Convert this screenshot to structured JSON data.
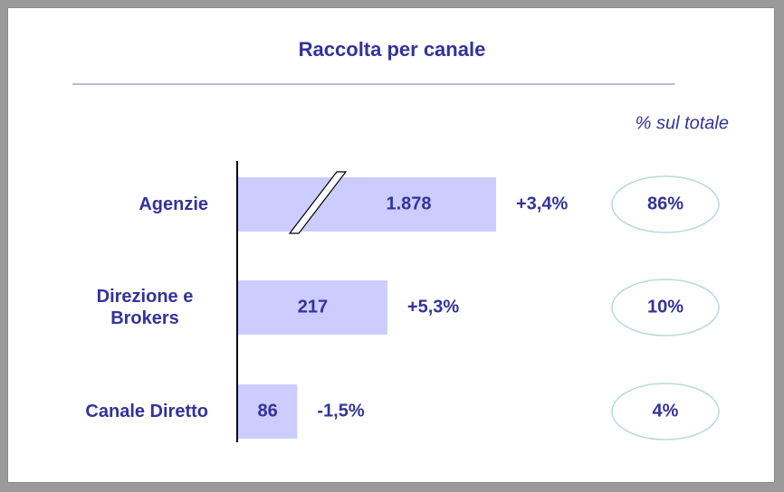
{
  "chart_data": {
    "type": "bar",
    "orientation": "horizontal",
    "title": "Raccolta per canale",
    "subtitle": "% sul totale",
    "categories": [
      "Agenzie",
      "Direzione e Brokers",
      "Canale Diretto"
    ],
    "values": [
      1878,
      217,
      86
    ],
    "value_labels": [
      "1.878",
      "217",
      "86"
    ],
    "changes": [
      "+3,4%",
      "+5,3%",
      "-1,5%"
    ],
    "shares": [
      "86%",
      "10%",
      "4%"
    ],
    "color": "#ccccff"
  }
}
